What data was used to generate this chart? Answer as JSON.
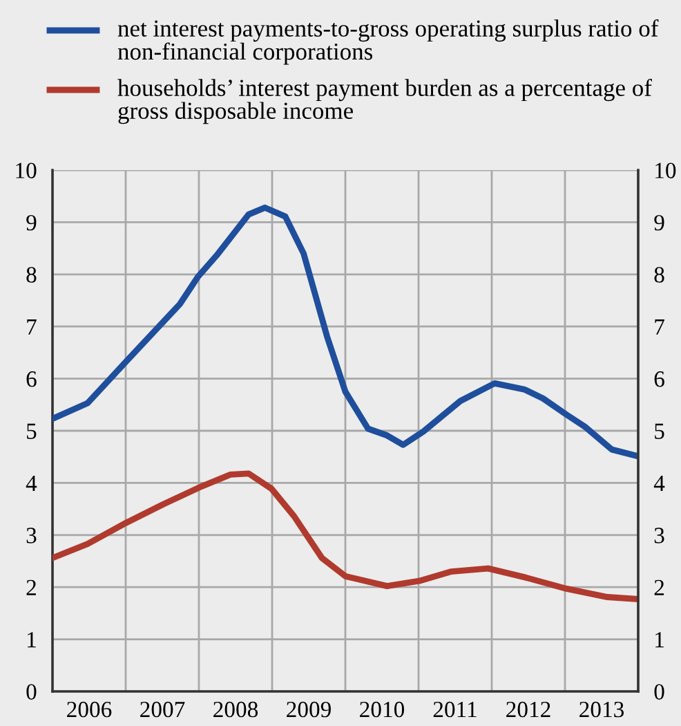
{
  "chart_data": {
    "type": "line",
    "series": [
      {
        "name": "net interest payments-to-gross operating surplus ratio of non-financial corporations",
        "color": "#1f4e9c",
        "x": [
          2006.0,
          2006.48,
          2007.0,
          2007.74,
          2007.99,
          2008.24,
          2008.68,
          2008.9,
          2009.18,
          2009.43,
          2009.75,
          2010.0,
          2010.31,
          2010.57,
          2010.79,
          2011.07,
          2011.57,
          2012.04,
          2012.45,
          2012.7,
          2013.02,
          2013.27,
          2013.64,
          2014.0
        ],
        "values": [
          5.23,
          5.53,
          6.32,
          7.43,
          7.96,
          8.36,
          9.15,
          9.28,
          9.11,
          8.4,
          6.81,
          5.75,
          5.04,
          4.91,
          4.73,
          4.99,
          5.57,
          5.91,
          5.79,
          5.62,
          5.31,
          5.08,
          4.64,
          4.51
        ]
      },
      {
        "name": "households’ interest payment burden as a percentage of gross disposable income",
        "color": "#b03a2e",
        "x": [
          2006.0,
          2006.48,
          2007.0,
          2007.5,
          2008.0,
          2008.43,
          2008.68,
          2008.99,
          2009.3,
          2009.68,
          2010.0,
          2010.57,
          2011.01,
          2011.45,
          2011.95,
          2012.45,
          2013.02,
          2013.58,
          2014.0
        ],
        "values": [
          2.56,
          2.83,
          3.23,
          3.58,
          3.91,
          4.16,
          4.18,
          3.89,
          3.36,
          2.56,
          2.21,
          2.02,
          2.12,
          2.3,
          2.36,
          2.19,
          1.97,
          1.81,
          1.77
        ]
      }
    ],
    "xlim": [
      2006,
      2014
    ],
    "xticks": [
      {
        "value": 2006,
        "label": null
      },
      {
        "value": 2006.5,
        "label": "2006"
      },
      {
        "value": 2007,
        "label": null
      },
      {
        "value": 2007.5,
        "label": "2007"
      },
      {
        "value": 2008,
        "label": null
      },
      {
        "value": 2008.5,
        "label": "2008"
      },
      {
        "value": 2009,
        "label": null
      },
      {
        "value": 2009.5,
        "label": "2009"
      },
      {
        "value": 2010,
        "label": null
      },
      {
        "value": 2010.5,
        "label": "2010"
      },
      {
        "value": 2011,
        "label": null
      },
      {
        "value": 2011.5,
        "label": "2011"
      },
      {
        "value": 2012,
        "label": null
      },
      {
        "value": 2012.5,
        "label": "2012"
      },
      {
        "value": 2013,
        "label": null
      },
      {
        "value": 2013.5,
        "label": "2013"
      },
      {
        "value": 2014,
        "label": null
      }
    ],
    "ylim": [
      0,
      10
    ],
    "yticks": [
      0,
      1,
      2,
      3,
      4,
      5,
      6,
      7,
      8,
      9,
      10
    ],
    "y2lim": [
      0,
      10
    ],
    "y2ticks": [
      0,
      1,
      2,
      3,
      4,
      5,
      6,
      7,
      8,
      9,
      10
    ],
    "grid": true,
    "legend": "top",
    "marker": "none",
    "line_style": "solid"
  }
}
